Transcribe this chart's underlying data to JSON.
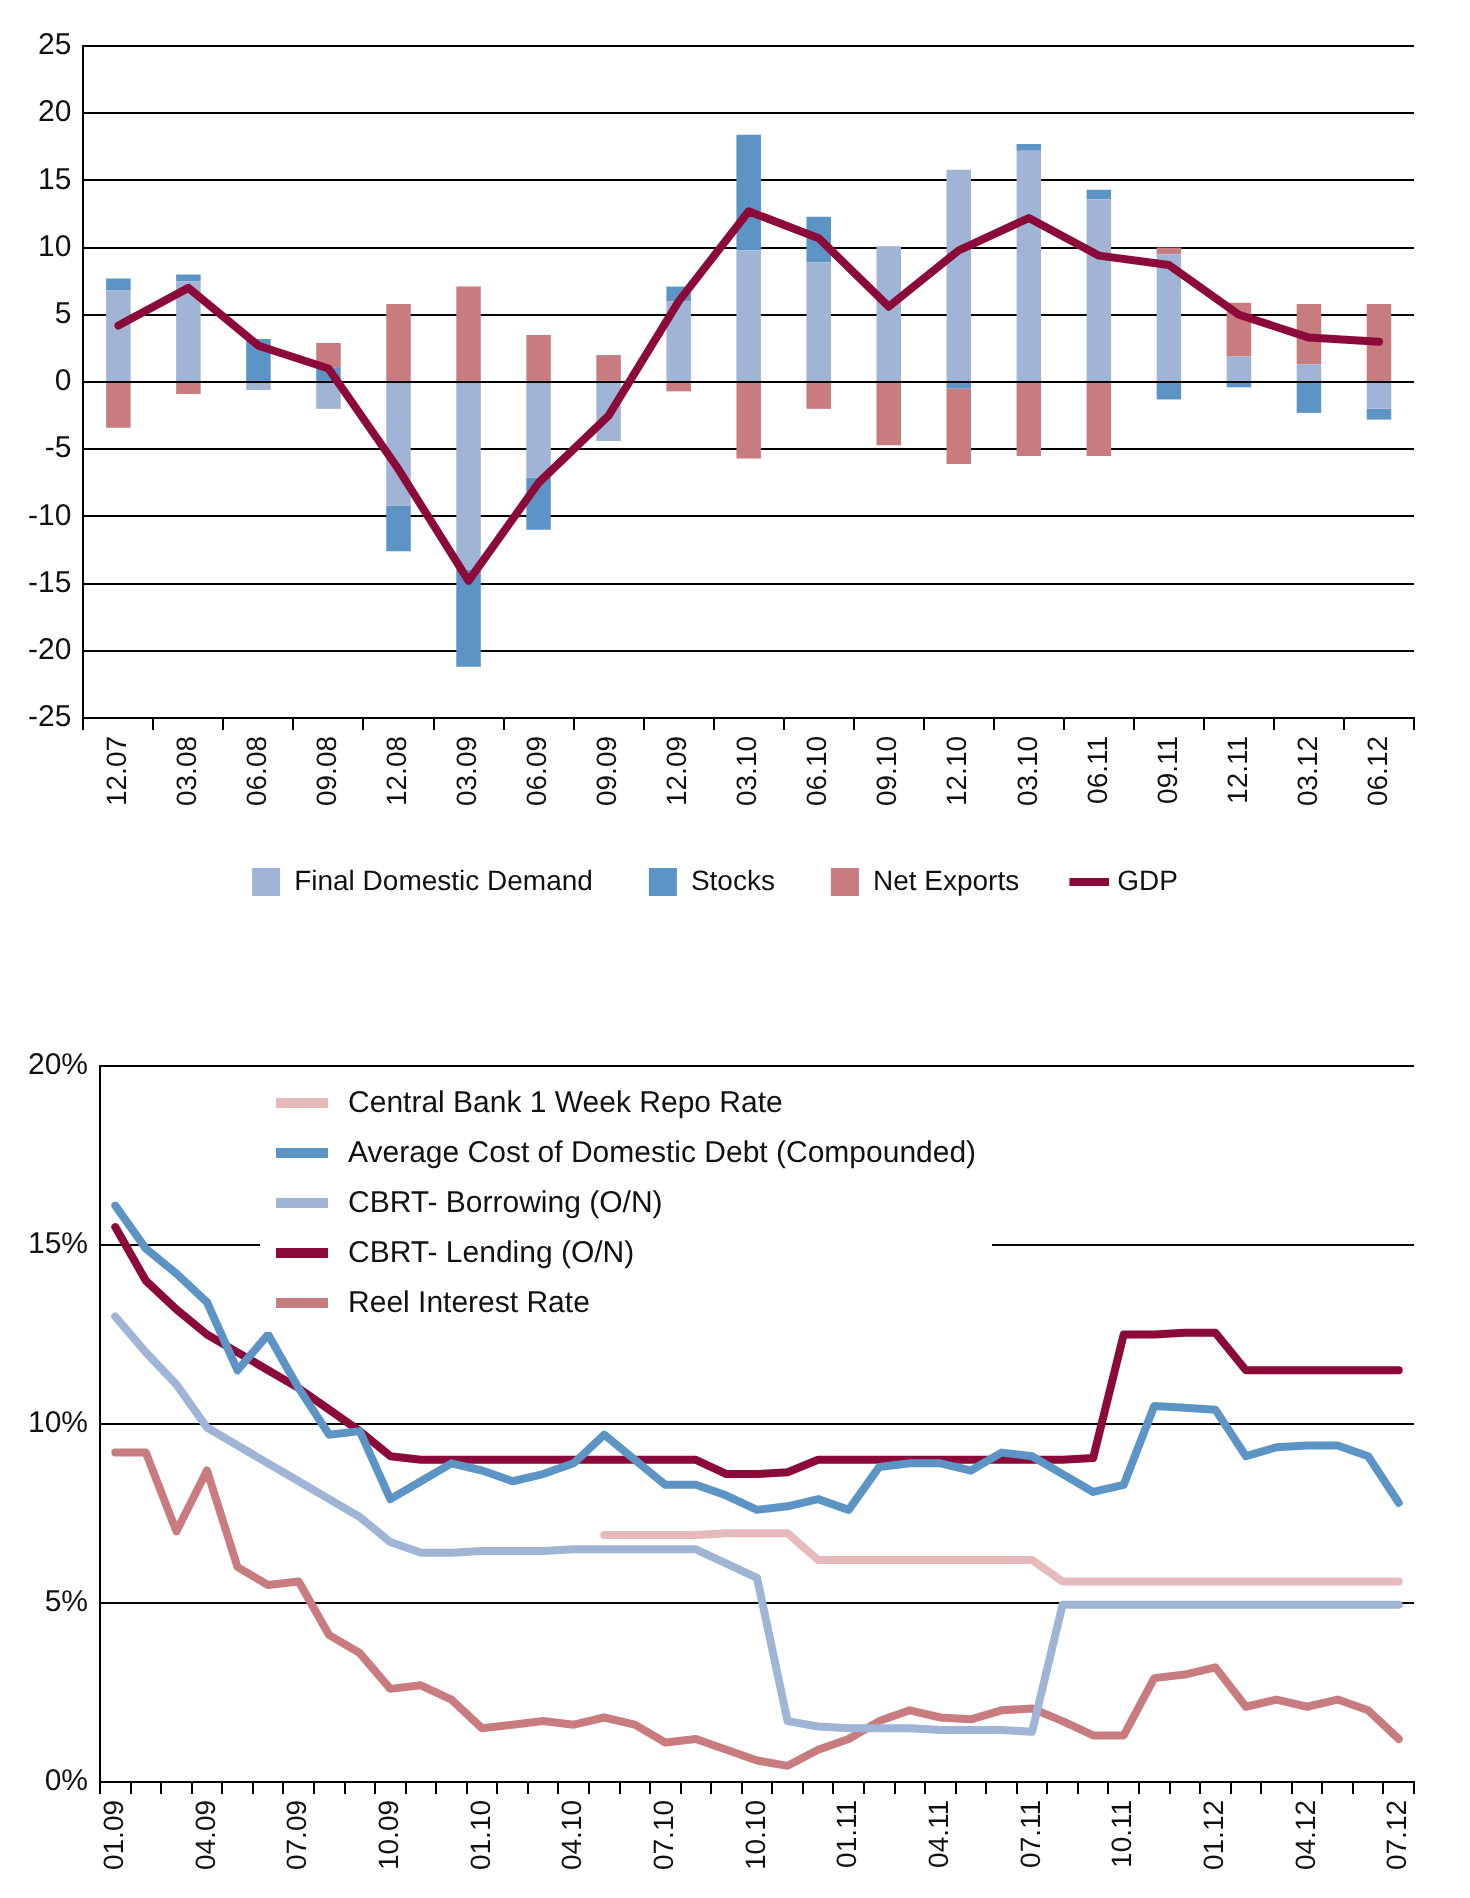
{
  "chart_data": [
    {
      "type": "bar",
      "stacked": true,
      "categories": [
        "12.07",
        "03.08",
        "06.08",
        "09.08",
        "12.08",
        "03.09",
        "06.09",
        "09.09",
        "12.09",
        "03.10",
        "06.10",
        "09.10",
        "12.10",
        "03.10",
        "06.11",
        "09.11",
        "12.11",
        "03.12",
        "06.12"
      ],
      "series": [
        {
          "name": "Final Domestic Demand",
          "color": "#a0b4d6",
          "values": [
            6.8,
            7.5,
            -0.6,
            -2.0,
            -9.2,
            -14.0,
            -7.1,
            -4.4,
            6.0,
            9.8,
            8.9,
            10.1,
            15.8,
            17.2,
            13.6,
            9.5,
            1.9,
            1.3,
            -2.0
          ]
        },
        {
          "name": "Stocks",
          "color": "#5b94c5",
          "values": [
            0.9,
            0.5,
            3.2,
            1.1,
            -3.4,
            -7.2,
            -3.9,
            0,
            1.1,
            8.6,
            3.4,
            0,
            -0.5,
            0.5,
            0.7,
            -1.3,
            -0.4,
            -2.3,
            -0.8
          ]
        },
        {
          "name": "Net Exports",
          "color": "#c97c80",
          "values": [
            -3.4,
            -0.9,
            0,
            1.8,
            5.8,
            7.1,
            3.5,
            2.0,
            -0.7,
            -5.7,
            -2.0,
            -4.7,
            -5.6,
            -5.5,
            -5.5,
            0.5,
            4.0,
            4.5,
            5.8
          ]
        },
        {
          "name": "GDP",
          "type": "line",
          "color": "#8b0a3a",
          "values": [
            4.2,
            7.0,
            2.7,
            1.0,
            -6.5,
            -14.8,
            -7.5,
            -2.5,
            6.0,
            12.7,
            10.7,
            5.6,
            9.8,
            12.2,
            9.4,
            8.7,
            5.0,
            3.3,
            3.0
          ]
        }
      ],
      "ylim": [
        -25,
        25
      ],
      "yticks": [
        -25,
        -20,
        -15,
        -10,
        -5,
        0,
        5,
        10,
        15,
        20,
        25
      ],
      "grid": "y",
      "legend": "bottom",
      "marker": "none"
    },
    {
      "type": "line",
      "categories": [
        "01.09",
        null,
        null,
        "04.09",
        null,
        null,
        "07.09",
        null,
        null,
        "10.09",
        null,
        null,
        "01.10",
        null,
        null,
        "04.10",
        null,
        null,
        "07.10",
        null,
        null,
        "10.10",
        null,
        null,
        "01.11",
        null,
        null,
        "04.11",
        null,
        null,
        "07.11",
        null,
        null,
        "10.11",
        null,
        null,
        "01.12",
        null,
        null,
        "04.12",
        null,
        null,
        "07.12"
      ],
      "series": [
        {
          "name": "Central Bank 1 Week Repo Rate",
          "color": "#e6baba",
          "values": [
            null,
            null,
            null,
            null,
            null,
            null,
            null,
            null,
            null,
            null,
            null,
            null,
            null,
            null,
            null,
            null,
            6.9,
            6.9,
            6.9,
            6.9,
            6.95,
            6.95,
            6.95,
            6.2,
            6.2,
            6.2,
            6.2,
            6.2,
            6.2,
            6.2,
            6.2,
            5.6,
            5.6,
            5.6,
            5.6,
            5.6,
            5.6,
            5.6,
            5.6,
            5.6,
            5.6,
            5.6,
            5.6
          ]
        },
        {
          "name": "Average Cost of Domestic Debt (Compounded)",
          "color": "#5b94c5",
          "values": [
            16.1,
            14.9,
            14.2,
            13.4,
            11.5,
            12.5,
            11.0,
            9.7,
            9.8,
            7.9,
            8.4,
            8.9,
            8.7,
            8.4,
            8.6,
            8.9,
            9.7,
            9.0,
            8.3,
            8.3,
            8.0,
            7.6,
            7.7,
            7.9,
            7.6,
            8.8,
            8.9,
            8.9,
            8.7,
            9.2,
            9.1,
            8.6,
            8.1,
            8.3,
            10.5,
            10.45,
            10.4,
            9.1,
            9.35,
            9.4,
            9.4,
            9.1,
            7.8
          ]
        },
        {
          "name": "CBRT- Borrowing (O/N)",
          "color": "#a0b4d6",
          "values": [
            13.0,
            12.0,
            11.1,
            9.9,
            9.4,
            8.9,
            8.4,
            7.9,
            7.4,
            6.7,
            6.4,
            6.4,
            6.45,
            6.45,
            6.45,
            6.5,
            6.5,
            6.5,
            6.5,
            6.5,
            6.1,
            5.7,
            1.7,
            1.55,
            1.5,
            1.5,
            1.5,
            1.45,
            1.45,
            1.45,
            1.4,
            4.95,
            4.95,
            4.95,
            4.95,
            4.95,
            4.95,
            4.95,
            4.95,
            4.95,
            4.95,
            4.95,
            4.95
          ]
        },
        {
          "name": "CBRT- Lending (O/N)",
          "color": "#8b0a3a",
          "values": [
            15.5,
            14.0,
            13.2,
            12.5,
            12.0,
            11.5,
            11.0,
            10.4,
            9.8,
            9.1,
            9.0,
            9.0,
            9.0,
            9.0,
            9.0,
            9.0,
            9.0,
            9.0,
            9.0,
            9.0,
            8.6,
            8.6,
            8.65,
            9.0,
            9.0,
            9.0,
            9.0,
            9.0,
            9.0,
            9.0,
            9.0,
            9.0,
            9.05,
            12.5,
            12.5,
            12.55,
            12.55,
            11.5,
            11.5,
            11.5,
            11.5,
            11.5,
            11.5
          ]
        },
        {
          "name": "Reel Interest Rate",
          "color": "#c97c80",
          "values": [
            9.2,
            9.2,
            7.0,
            8.7,
            6.0,
            5.5,
            5.6,
            4.1,
            3.6,
            2.6,
            2.7,
            2.3,
            1.5,
            1.6,
            1.7,
            1.6,
            1.8,
            1.6,
            1.1,
            1.2,
            0.9,
            0.6,
            0.45,
            0.9,
            1.2,
            1.7,
            2.0,
            1.8,
            1.75,
            2.0,
            2.05,
            1.7,
            1.3,
            1.3,
            2.9,
            3.0,
            3.2,
            2.1,
            2.3,
            2.1,
            2.3,
            2.0,
            1.2
          ]
        }
      ],
      "ylim": [
        0,
        20
      ],
      "yticks": [
        {
          "value": 0,
          "label": "0%"
        },
        {
          "value": 5,
          "label": "5%"
        },
        {
          "value": 10,
          "label": "10%"
        },
        {
          "value": 15,
          "label": "15%"
        },
        {
          "value": 20,
          "label": "20%"
        }
      ],
      "grid": "y",
      "legend": "top left",
      "marker": "none"
    }
  ]
}
